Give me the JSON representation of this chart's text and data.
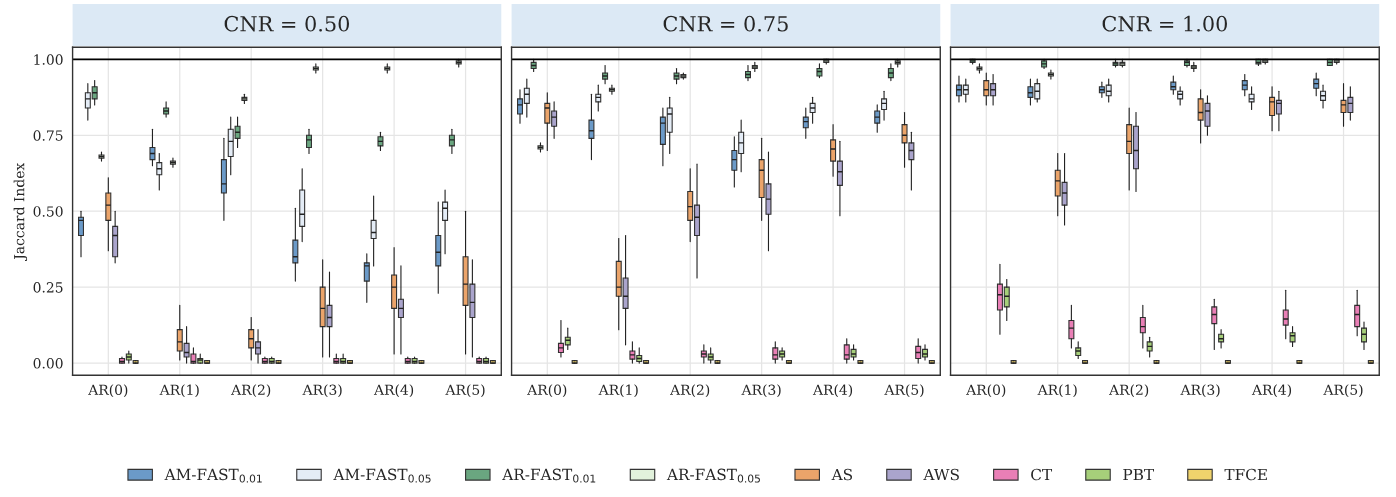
{
  "chart_data": [
    {
      "type": "box",
      "title": "CNR = 0.50",
      "ylabel": "Jaccard Index",
      "categories": [
        "AR(0)",
        "AR(1)",
        "AR(2)",
        "AR(3)",
        "AR(4)",
        "AR(5)"
      ],
      "ylim": [
        -0.04,
        1.04
      ],
      "yticks": [
        {
          "value": 0,
          "label": "0.00"
        },
        {
          "value": 0.25,
          "label": "0.25"
        },
        {
          "value": 0.5,
          "label": "0.50"
        },
        {
          "value": 0.75,
          "label": "0.75"
        },
        {
          "value": 1,
          "label": "1.00"
        }
      ],
      "grid": true,
      "legend": "bottom",
      "ref_lines": [
        {
          "axis": "y",
          "value": 1
        }
      ],
      "series": [
        {
          "name": "AM-FAST$_{0.01}$",
          "color": "#6b9ac8",
          "boxes": [
            {
              "low": 0.35,
              "q1": 0.42,
              "median": 0.47,
              "q3": 0.48,
              "high": 0.5
            },
            {
              "low": 0.65,
              "q1": 0.67,
              "median": 0.69,
              "q3": 0.71,
              "high": 0.77
            },
            {
              "low": 0.47,
              "q1": 0.56,
              "median": 0.59,
              "q3": 0.67,
              "high": 0.74
            },
            {
              "low": 0.27,
              "q1": 0.33,
              "median": 0.35,
              "q3": 0.405,
              "high": 0.51
            },
            {
              "low": 0.2,
              "q1": 0.27,
              "median": 0.32,
              "q3": 0.33,
              "high": 0.36
            },
            {
              "low": 0.23,
              "q1": 0.32,
              "median": 0.365,
              "q3": 0.42,
              "high": 0.53
            }
          ]
        },
        {
          "name": "AM-FAST$_{0.05}$",
          "color": "#e4ecf6",
          "boxes": [
            {
              "low": 0.8,
              "q1": 0.84,
              "median": 0.87,
              "q3": 0.89,
              "high": 0.92
            },
            {
              "low": 0.57,
              "q1": 0.62,
              "median": 0.64,
              "q3": 0.66,
              "high": 0.69
            },
            {
              "low": 0.62,
              "q1": 0.68,
              "median": 0.73,
              "q3": 0.77,
              "high": 0.81
            },
            {
              "low": 0.4,
              "q1": 0.45,
              "median": 0.49,
              "q3": 0.57,
              "high": 0.64
            },
            {
              "low": 0.32,
              "q1": 0.41,
              "median": 0.43,
              "q3": 0.47,
              "high": 0.55
            },
            {
              "low": 0.36,
              "q1": 0.47,
              "median": 0.51,
              "q3": 0.53,
              "high": 0.57
            }
          ]
        },
        {
          "name": "AR-FAST$_{0.01}$",
          "color": "#6aa680",
          "boxes": [
            {
              "low": 0.85,
              "q1": 0.87,
              "median": 0.89,
              "q3": 0.91,
              "high": 0.93
            },
            {
              "low": 0.81,
              "q1": 0.82,
              "median": 0.83,
              "q3": 0.84,
              "high": 0.86
            },
            {
              "low": 0.71,
              "q1": 0.74,
              "median": 0.76,
              "q3": 0.78,
              "high": 0.81
            },
            {
              "low": 0.69,
              "q1": 0.71,
              "median": 0.735,
              "q3": 0.75,
              "high": 0.77
            },
            {
              "low": 0.7,
              "q1": 0.715,
              "median": 0.73,
              "q3": 0.745,
              "high": 0.76
            },
            {
              "low": 0.69,
              "q1": 0.715,
              "median": 0.735,
              "q3": 0.75,
              "high": 0.77
            }
          ]
        },
        {
          "name": "AR-FAST$_{0.05}$",
          "color": "#e2f2dc",
          "boxes": [
            {
              "low": 0.665,
              "q1": 0.675,
              "median": 0.68,
              "q3": 0.685,
              "high": 0.695
            },
            {
              "low": 0.645,
              "q1": 0.655,
              "median": 0.66,
              "q3": 0.665,
              "high": 0.675
            },
            {
              "low": 0.855,
              "q1": 0.865,
              "median": 0.87,
              "q3": 0.875,
              "high": 0.885
            },
            {
              "low": 0.955,
              "q1": 0.965,
              "median": 0.97,
              "q3": 0.975,
              "high": 0.985
            },
            {
              "low": 0.955,
              "q1": 0.965,
              "median": 0.97,
              "q3": 0.975,
              "high": 0.985
            },
            {
              "low": 0.975,
              "q1": 0.985,
              "median": 0.99,
              "q3": 0.995,
              "high": 1.0
            }
          ]
        },
        {
          "name": "AS",
          "color": "#eba46a",
          "boxes": [
            {
              "low": 0.37,
              "q1": 0.47,
              "median": 0.52,
              "q3": 0.56,
              "high": 0.61
            },
            {
              "low": 0.01,
              "q1": 0.04,
              "median": 0.07,
              "q3": 0.11,
              "high": 0.19
            },
            {
              "low": 0.01,
              "q1": 0.05,
              "median": 0.08,
              "q3": 0.11,
              "high": 0.15
            },
            {
              "low": 0.02,
              "q1": 0.12,
              "median": 0.18,
              "q3": 0.25,
              "high": 0.34
            },
            {
              "low": 0.03,
              "q1": 0.18,
              "median": 0.25,
              "q3": 0.29,
              "high": 0.38
            },
            {
              "low": 0.03,
              "q1": 0.19,
              "median": 0.26,
              "q3": 0.35,
              "high": 0.5
            }
          ]
        },
        {
          "name": "AWS",
          "color": "#aaa4cc",
          "boxes": [
            {
              "low": 0.33,
              "q1": 0.35,
              "median": 0.42,
              "q3": 0.45,
              "high": 0.5
            },
            {
              "low": 0,
              "q1": 0.02,
              "median": 0.035,
              "q3": 0.065,
              "high": 0.12
            },
            {
              "low": 0,
              "q1": 0.03,
              "median": 0.05,
              "q3": 0.07,
              "high": 0.11
            },
            {
              "low": 0.02,
              "q1": 0.12,
              "median": 0.15,
              "q3": 0.19,
              "high": 0.3
            },
            {
              "low": 0.03,
              "q1": 0.15,
              "median": 0.18,
              "q3": 0.21,
              "high": 0.32
            },
            {
              "low": 0.02,
              "q1": 0.15,
              "median": 0.2,
              "q3": 0.26,
              "high": 0.34
            }
          ]
        },
        {
          "name": "CT",
          "color": "#e97fb6",
          "boxes": [
            {
              "low": 0,
              "q1": 0,
              "median": 0.005,
              "q3": 0.015,
              "high": 0.02
            },
            {
              "low": 0,
              "q1": 0,
              "median": 0.005,
              "q3": 0.03,
              "high": 0.05
            },
            {
              "low": 0,
              "q1": 0,
              "median": 0.005,
              "q3": 0.015,
              "high": 0.02
            },
            {
              "low": 0,
              "q1": 0,
              "median": 0.005,
              "q3": 0.015,
              "high": 0.03
            },
            {
              "low": 0,
              "q1": 0,
              "median": 0.005,
              "q3": 0.015,
              "high": 0.02
            },
            {
              "low": 0,
              "q1": 0,
              "median": 0.005,
              "q3": 0.015,
              "high": 0.02
            }
          ]
        },
        {
          "name": "PBT",
          "color": "#a6cf7a",
          "boxes": [
            {
              "low": 0,
              "q1": 0.01,
              "median": 0.02,
              "q3": 0.03,
              "high": 0.04
            },
            {
              "low": 0,
              "q1": 0,
              "median": 0.01,
              "q3": 0.015,
              "high": 0.03
            },
            {
              "low": 0,
              "q1": 0,
              "median": 0.005,
              "q3": 0.015,
              "high": 0.02
            },
            {
              "low": 0,
              "q1": 0,
              "median": 0.005,
              "q3": 0.015,
              "high": 0.03
            },
            {
              "low": 0,
              "q1": 0,
              "median": 0.005,
              "q3": 0.015,
              "high": 0.02
            },
            {
              "low": 0,
              "q1": 0,
              "median": 0.005,
              "q3": 0.015,
              "high": 0.02
            }
          ]
        },
        {
          "name": "TFCE",
          "color": "#f0d36c",
          "boxes": [
            {
              "low": 0,
              "q1": 0,
              "median": 0,
              "q3": 0.008,
              "high": 0.008
            },
            {
              "low": 0,
              "q1": 0,
              "median": 0,
              "q3": 0.008,
              "high": 0.008
            },
            {
              "low": 0,
              "q1": 0,
              "median": 0,
              "q3": 0.008,
              "high": 0.008
            },
            {
              "low": 0,
              "q1": 0,
              "median": 0,
              "q3": 0.008,
              "high": 0.008
            },
            {
              "low": 0,
              "q1": 0,
              "median": 0,
              "q3": 0.008,
              "high": 0.008
            },
            {
              "low": 0,
              "q1": 0,
              "median": 0,
              "q3": 0.008,
              "high": 0.008
            }
          ]
        }
      ]
    },
    {
      "type": "box",
      "title": "CNR = 0.75",
      "categories": [
        "AR(0)",
        "AR(1)",
        "AR(2)",
        "AR(3)",
        "AR(4)",
        "AR(5)"
      ],
      "ylim": [
        -0.04,
        1.04
      ],
      "yticks": [
        {
          "value": 0,
          "label": null
        },
        {
          "value": 0.25,
          "label": null
        },
        {
          "value": 0.5,
          "label": null
        },
        {
          "value": 0.75,
          "label": null
        },
        {
          "value": 1,
          "label": null
        }
      ],
      "tick_labels": "x",
      "grid": true,
      "ref_lines": [
        {
          "axis": "y",
          "value": 1
        }
      ],
      "series": [
        {
          "color": "#6b9ac8",
          "boxes": [
            {
              "low": 0.79,
              "q1": 0.82,
              "median": 0.85,
              "q3": 0.87,
              "high": 0.9
            },
            {
              "low": 0.67,
              "q1": 0.74,
              "median": 0.765,
              "q3": 0.8,
              "high": 0.885
            },
            {
              "low": 0.65,
              "q1": 0.72,
              "median": 0.79,
              "q3": 0.81,
              "high": 0.84
            },
            {
              "low": 0.58,
              "q1": 0.635,
              "median": 0.67,
              "q3": 0.7,
              "high": 0.745
            },
            {
              "low": 0.74,
              "q1": 0.775,
              "median": 0.795,
              "q3": 0.81,
              "high": 0.84
            },
            {
              "low": 0.76,
              "q1": 0.79,
              "median": 0.81,
              "q3": 0.83,
              "high": 0.85
            }
          ]
        },
        {
          "color": "#e4ecf6",
          "boxes": [
            {
              "low": 0.81,
              "q1": 0.855,
              "median": 0.885,
              "q3": 0.905,
              "high": 0.935
            },
            {
              "low": 0.83,
              "q1": 0.86,
              "median": 0.875,
              "q3": 0.885,
              "high": 0.915
            },
            {
              "low": 0.69,
              "q1": 0.76,
              "median": 0.82,
              "q3": 0.84,
              "high": 0.875
            },
            {
              "low": 0.63,
              "q1": 0.69,
              "median": 0.725,
              "q3": 0.76,
              "high": 0.8
            },
            {
              "low": 0.79,
              "q1": 0.825,
              "median": 0.84,
              "q3": 0.855,
              "high": 0.875
            },
            {
              "low": 0.8,
              "q1": 0.835,
              "median": 0.855,
              "q3": 0.87,
              "high": 0.895
            }
          ]
        },
        {
          "color": "#6aa680",
          "boxes": [
            {
              "low": 0.96,
              "q1": 0.97,
              "median": 0.98,
              "q3": 0.99,
              "high": 1.0
            },
            {
              "low": 0.92,
              "q1": 0.935,
              "median": 0.945,
              "q3": 0.955,
              "high": 0.98
            },
            {
              "low": 0.92,
              "q1": 0.935,
              "median": 0.945,
              "q3": 0.955,
              "high": 0.97
            },
            {
              "low": 0.93,
              "q1": 0.94,
              "median": 0.95,
              "q3": 0.96,
              "high": 0.98
            },
            {
              "low": 0.94,
              "q1": 0.945,
              "median": 0.96,
              "q3": 0.97,
              "high": 0.985
            },
            {
              "low": 0.93,
              "q1": 0.94,
              "median": 0.955,
              "q3": 0.97,
              "high": 0.985
            }
          ]
        },
        {
          "color": "#e2f2dc",
          "boxes": [
            {
              "low": 0.695,
              "q1": 0.705,
              "median": 0.71,
              "q3": 0.715,
              "high": 0.725
            },
            {
              "low": 0.885,
              "q1": 0.895,
              "median": 0.9,
              "q3": 0.905,
              "high": 0.915
            },
            {
              "low": 0.935,
              "q1": 0.94,
              "median": 0.945,
              "q3": 0.95,
              "high": 0.955
            },
            {
              "low": 0.96,
              "q1": 0.97,
              "median": 0.975,
              "q3": 0.98,
              "high": 0.99
            },
            {
              "low": 0.985,
              "q1": 0.99,
              "median": 0.995,
              "q3": 1.0,
              "high": 1.0
            },
            {
              "low": 0.975,
              "q1": 0.985,
              "median": 0.99,
              "q3": 0.995,
              "high": 1.0
            }
          ]
        },
        {
          "color": "#eba46a",
          "boxes": [
            {
              "low": 0.7,
              "q1": 0.79,
              "median": 0.84,
              "q3": 0.855,
              "high": 0.89
            },
            {
              "low": 0.11,
              "q1": 0.22,
              "median": 0.25,
              "q3": 0.335,
              "high": 0.41
            },
            {
              "low": 0.4,
              "q1": 0.47,
              "median": 0.515,
              "q3": 0.565,
              "high": 0.64
            },
            {
              "low": 0.47,
              "q1": 0.545,
              "median": 0.635,
              "q3": 0.67,
              "high": 0.74
            },
            {
              "low": 0.615,
              "q1": 0.665,
              "median": 0.705,
              "q3": 0.735,
              "high": 0.785
            },
            {
              "low": 0.645,
              "q1": 0.725,
              "median": 0.75,
              "q3": 0.785,
              "high": 0.825
            }
          ]
        },
        {
          "color": "#aaa4cc",
          "boxes": [
            {
              "low": 0.74,
              "q1": 0.78,
              "median": 0.81,
              "q3": 0.83,
              "high": 0.86
            },
            {
              "low": 0.06,
              "q1": 0.18,
              "median": 0.22,
              "q3": 0.28,
              "high": 0.42
            },
            {
              "low": 0.28,
              "q1": 0.42,
              "median": 0.48,
              "q3": 0.52,
              "high": 0.655
            },
            {
              "low": 0.37,
              "q1": 0.49,
              "median": 0.54,
              "q3": 0.59,
              "high": 0.695
            },
            {
              "low": 0.485,
              "q1": 0.585,
              "median": 0.63,
              "q3": 0.665,
              "high": 0.73
            },
            {
              "low": 0.57,
              "q1": 0.67,
              "median": 0.7,
              "q3": 0.725,
              "high": 0.76
            }
          ]
        },
        {
          "color": "#e97fb6",
          "boxes": [
            {
              "low": 0.02,
              "q1": 0.035,
              "median": 0.05,
              "q3": 0.065,
              "high": 0.14
            },
            {
              "low": 0,
              "q1": 0.013,
              "median": 0.027,
              "q3": 0.04,
              "high": 0.07
            },
            {
              "low": 0,
              "q1": 0.02,
              "median": 0.03,
              "q3": 0.04,
              "high": 0.06
            },
            {
              "low": 0,
              "q1": 0.013,
              "median": 0.027,
              "q3": 0.05,
              "high": 0.07
            },
            {
              "low": 0,
              "q1": 0.013,
              "median": 0.027,
              "q3": 0.06,
              "high": 0.08
            },
            {
              "low": 0,
              "q1": 0.015,
              "median": 0.035,
              "q3": 0.055,
              "high": 0.08
            }
          ]
        },
        {
          "color": "#a6cf7a",
          "boxes": [
            {
              "low": 0.045,
              "q1": 0.06,
              "median": 0.075,
              "q3": 0.085,
              "high": 0.115
            },
            {
              "low": 0,
              "q1": 0.005,
              "median": 0.015,
              "q3": 0.025,
              "high": 0.05
            },
            {
              "low": 0,
              "q1": 0.01,
              "median": 0.02,
              "q3": 0.03,
              "high": 0.05
            },
            {
              "low": 0.01,
              "q1": 0.02,
              "median": 0.03,
              "q3": 0.04,
              "high": 0.05
            },
            {
              "low": 0.01,
              "q1": 0.02,
              "median": 0.03,
              "q3": 0.045,
              "high": 0.06
            },
            {
              "low": 0.01,
              "q1": 0.02,
              "median": 0.03,
              "q3": 0.045,
              "high": 0.06
            }
          ]
        },
        {
          "color": "#f0d36c",
          "boxes": [
            {
              "low": 0,
              "q1": 0,
              "median": 0,
              "q3": 0.008,
              "high": 0.008
            },
            {
              "low": 0,
              "q1": 0,
              "median": 0,
              "q3": 0.008,
              "high": 0.008
            },
            {
              "low": 0,
              "q1": 0,
              "median": 0,
              "q3": 0.008,
              "high": 0.008
            },
            {
              "low": 0,
              "q1": 0,
              "median": 0,
              "q3": 0.008,
              "high": 0.008
            },
            {
              "low": 0,
              "q1": 0,
              "median": 0,
              "q3": 0.008,
              "high": 0.008
            },
            {
              "low": 0,
              "q1": 0,
              "median": 0,
              "q3": 0.008,
              "high": 0.008
            }
          ]
        }
      ]
    },
    {
      "type": "box",
      "title": "CNR = 1.00",
      "categories": [
        "AR(0)",
        "AR(1)",
        "AR(2)",
        "AR(3)",
        "AR(4)",
        "AR(5)"
      ],
      "ylim": [
        -0.04,
        1.04
      ],
      "yticks": [
        {
          "value": 0,
          "label": null
        },
        {
          "value": 0.25,
          "label": null
        },
        {
          "value": 0.5,
          "label": null
        },
        {
          "value": 0.75,
          "label": null
        },
        {
          "value": 1,
          "label": null
        }
      ],
      "tick_labels": "x",
      "grid": true,
      "ref_lines": [
        {
          "axis": "y",
          "value": 1
        }
      ],
      "series": [
        {
          "color": "#6b9ac8",
          "boxes": [
            {
              "low": 0.86,
              "q1": 0.88,
              "median": 0.9,
              "q3": 0.915,
              "high": 0.945
            },
            {
              "low": 0.85,
              "q1": 0.875,
              "median": 0.89,
              "q3": 0.91,
              "high": 0.935
            },
            {
              "low": 0.875,
              "q1": 0.89,
              "median": 0.9,
              "q3": 0.91,
              "high": 0.925
            },
            {
              "low": 0.885,
              "q1": 0.9,
              "median": 0.91,
              "q3": 0.925,
              "high": 0.945
            },
            {
              "low": 0.88,
              "q1": 0.9,
              "median": 0.915,
              "q3": 0.93,
              "high": 0.95
            },
            {
              "low": 0.88,
              "q1": 0.905,
              "median": 0.92,
              "q3": 0.935,
              "high": 0.955
            }
          ]
        },
        {
          "color": "#e4ecf6",
          "boxes": [
            {
              "low": 0.86,
              "q1": 0.885,
              "median": 0.9,
              "q3": 0.915,
              "high": 0.935
            },
            {
              "low": 0.86,
              "q1": 0.87,
              "median": 0.895,
              "q3": 0.92,
              "high": 0.935
            },
            {
              "low": 0.86,
              "q1": 0.88,
              "median": 0.895,
              "q3": 0.915,
              "high": 0.935
            },
            {
              "low": 0.85,
              "q1": 0.87,
              "median": 0.885,
              "q3": 0.895,
              "high": 0.91
            },
            {
              "low": 0.835,
              "q1": 0.86,
              "median": 0.87,
              "q3": 0.885,
              "high": 0.91
            },
            {
              "low": 0.84,
              "q1": 0.865,
              "median": 0.88,
              "q3": 0.895,
              "high": 0.915
            }
          ]
        },
        {
          "color": "#6aa680",
          "boxes": [
            {
              "low": 0.985,
              "q1": 0.99,
              "median": 0.995,
              "q3": 1.0,
              "high": 1.0
            },
            {
              "low": 0.97,
              "q1": 0.975,
              "median": 0.985,
              "q3": 0.995,
              "high": 1.0
            },
            {
              "low": 0.975,
              "q1": 0.98,
              "median": 0.985,
              "q3": 0.99,
              "high": 1.0
            },
            {
              "low": 0.975,
              "q1": 0.98,
              "median": 0.99,
              "q3": 0.995,
              "high": 1.0
            },
            {
              "low": 0.98,
              "q1": 0.985,
              "median": 0.99,
              "q3": 1.0,
              "high": 1.0
            },
            {
              "low": 0.98,
              "q1": 0.98,
              "median": 0.99,
              "q3": 1.0,
              "high": 1.0
            }
          ]
        },
        {
          "color": "#e2f2dc",
          "boxes": [
            {
              "low": 0.955,
              "q1": 0.965,
              "median": 0.97,
              "q3": 0.975,
              "high": 0.985
            },
            {
              "low": 0.935,
              "q1": 0.945,
              "median": 0.95,
              "q3": 0.955,
              "high": 0.965
            },
            {
              "low": 0.975,
              "q1": 0.98,
              "median": 0.985,
              "q3": 0.99,
              "high": 1.0
            },
            {
              "low": 0.96,
              "q1": 0.97,
              "median": 0.975,
              "q3": 0.98,
              "high": 0.99
            },
            {
              "low": 0.985,
              "q1": 0.99,
              "median": 0.995,
              "q3": 1.0,
              "high": 1.0
            },
            {
              "low": 0.985,
              "q1": 0.99,
              "median": 0.995,
              "q3": 1.0,
              "high": 1.0
            }
          ]
        },
        {
          "color": "#eba46a",
          "boxes": [
            {
              "low": 0.85,
              "q1": 0.88,
              "median": 0.9,
              "q3": 0.93,
              "high": 0.955
            },
            {
              "low": 0.485,
              "q1": 0.55,
              "median": 0.6,
              "q3": 0.635,
              "high": 0.69
            },
            {
              "low": 0.57,
              "q1": 0.69,
              "median": 0.73,
              "q3": 0.785,
              "high": 0.84
            },
            {
              "low": 0.725,
              "q1": 0.8,
              "median": 0.825,
              "q3": 0.87,
              "high": 0.9
            },
            {
              "low": 0.765,
              "q1": 0.815,
              "median": 0.86,
              "q3": 0.875,
              "high": 0.91
            },
            {
              "low": 0.78,
              "q1": 0.825,
              "median": 0.85,
              "q3": 0.865,
              "high": 0.92
            }
          ]
        },
        {
          "color": "#aaa4cc",
          "boxes": [
            {
              "low": 0.85,
              "q1": 0.88,
              "median": 0.9,
              "q3": 0.92,
              "high": 0.95
            },
            {
              "low": 0.455,
              "q1": 0.52,
              "median": 0.56,
              "q3": 0.595,
              "high": 0.69
            },
            {
              "low": 0.565,
              "q1": 0.64,
              "median": 0.7,
              "q3": 0.78,
              "high": 0.825
            },
            {
              "low": 0.75,
              "q1": 0.78,
              "median": 0.83,
              "q3": 0.855,
              "high": 0.88
            },
            {
              "low": 0.765,
              "q1": 0.82,
              "median": 0.855,
              "q3": 0.865,
              "high": 0.895
            },
            {
              "low": 0.8,
              "q1": 0.825,
              "median": 0.855,
              "q3": 0.875,
              "high": 0.91
            }
          ]
        },
        {
          "color": "#e97fb6",
          "boxes": [
            {
              "low": 0.095,
              "q1": 0.175,
              "median": 0.225,
              "q3": 0.26,
              "high": 0.325
            },
            {
              "low": 0.05,
              "q1": 0.08,
              "median": 0.115,
              "q3": 0.14,
              "high": 0.19
            },
            {
              "low": 0.05,
              "q1": 0.1,
              "median": 0.12,
              "q3": 0.15,
              "high": 0.19
            },
            {
              "low": 0.045,
              "q1": 0.13,
              "median": 0.16,
              "q3": 0.185,
              "high": 0.21
            },
            {
              "low": 0.08,
              "q1": 0.125,
              "median": 0.145,
              "q3": 0.175,
              "high": 0.24
            },
            {
              "low": 0.09,
              "q1": 0.12,
              "median": 0.16,
              "q3": 0.19,
              "high": 0.24
            }
          ]
        },
        {
          "color": "#a6cf7a",
          "boxes": [
            {
              "low": 0.14,
              "q1": 0.185,
              "median": 0.22,
              "q3": 0.25,
              "high": 0.275
            },
            {
              "low": 0.015,
              "q1": 0.025,
              "median": 0.04,
              "q3": 0.05,
              "high": 0.07
            },
            {
              "low": 0.02,
              "q1": 0.04,
              "median": 0.055,
              "q3": 0.07,
              "high": 0.085
            },
            {
              "low": 0.05,
              "q1": 0.07,
              "median": 0.08,
              "q3": 0.095,
              "high": 0.11
            },
            {
              "low": 0.055,
              "q1": 0.07,
              "median": 0.09,
              "q3": 0.1,
              "high": 0.12
            },
            {
              "low": 0.045,
              "q1": 0.07,
              "median": 0.095,
              "q3": 0.115,
              "high": 0.135
            }
          ]
        },
        {
          "color": "#f0d36c",
          "boxes": [
            {
              "low": 0,
              "q1": 0,
              "median": 0,
              "q3": 0.008,
              "high": 0.008
            },
            {
              "low": 0,
              "q1": 0,
              "median": 0,
              "q3": 0.008,
              "high": 0.008
            },
            {
              "low": 0,
              "q1": 0,
              "median": 0,
              "q3": 0.008,
              "high": 0.008
            },
            {
              "low": 0,
              "q1": 0,
              "median": 0,
              "q3": 0.008,
              "high": 0.008
            },
            {
              "low": 0,
              "q1": 0,
              "median": 0,
              "q3": 0.008,
              "high": 0.008
            },
            {
              "low": 0,
              "q1": 0,
              "median": 0,
              "q3": 0.008,
              "high": 0.008
            }
          ]
        }
      ]
    }
  ]
}
